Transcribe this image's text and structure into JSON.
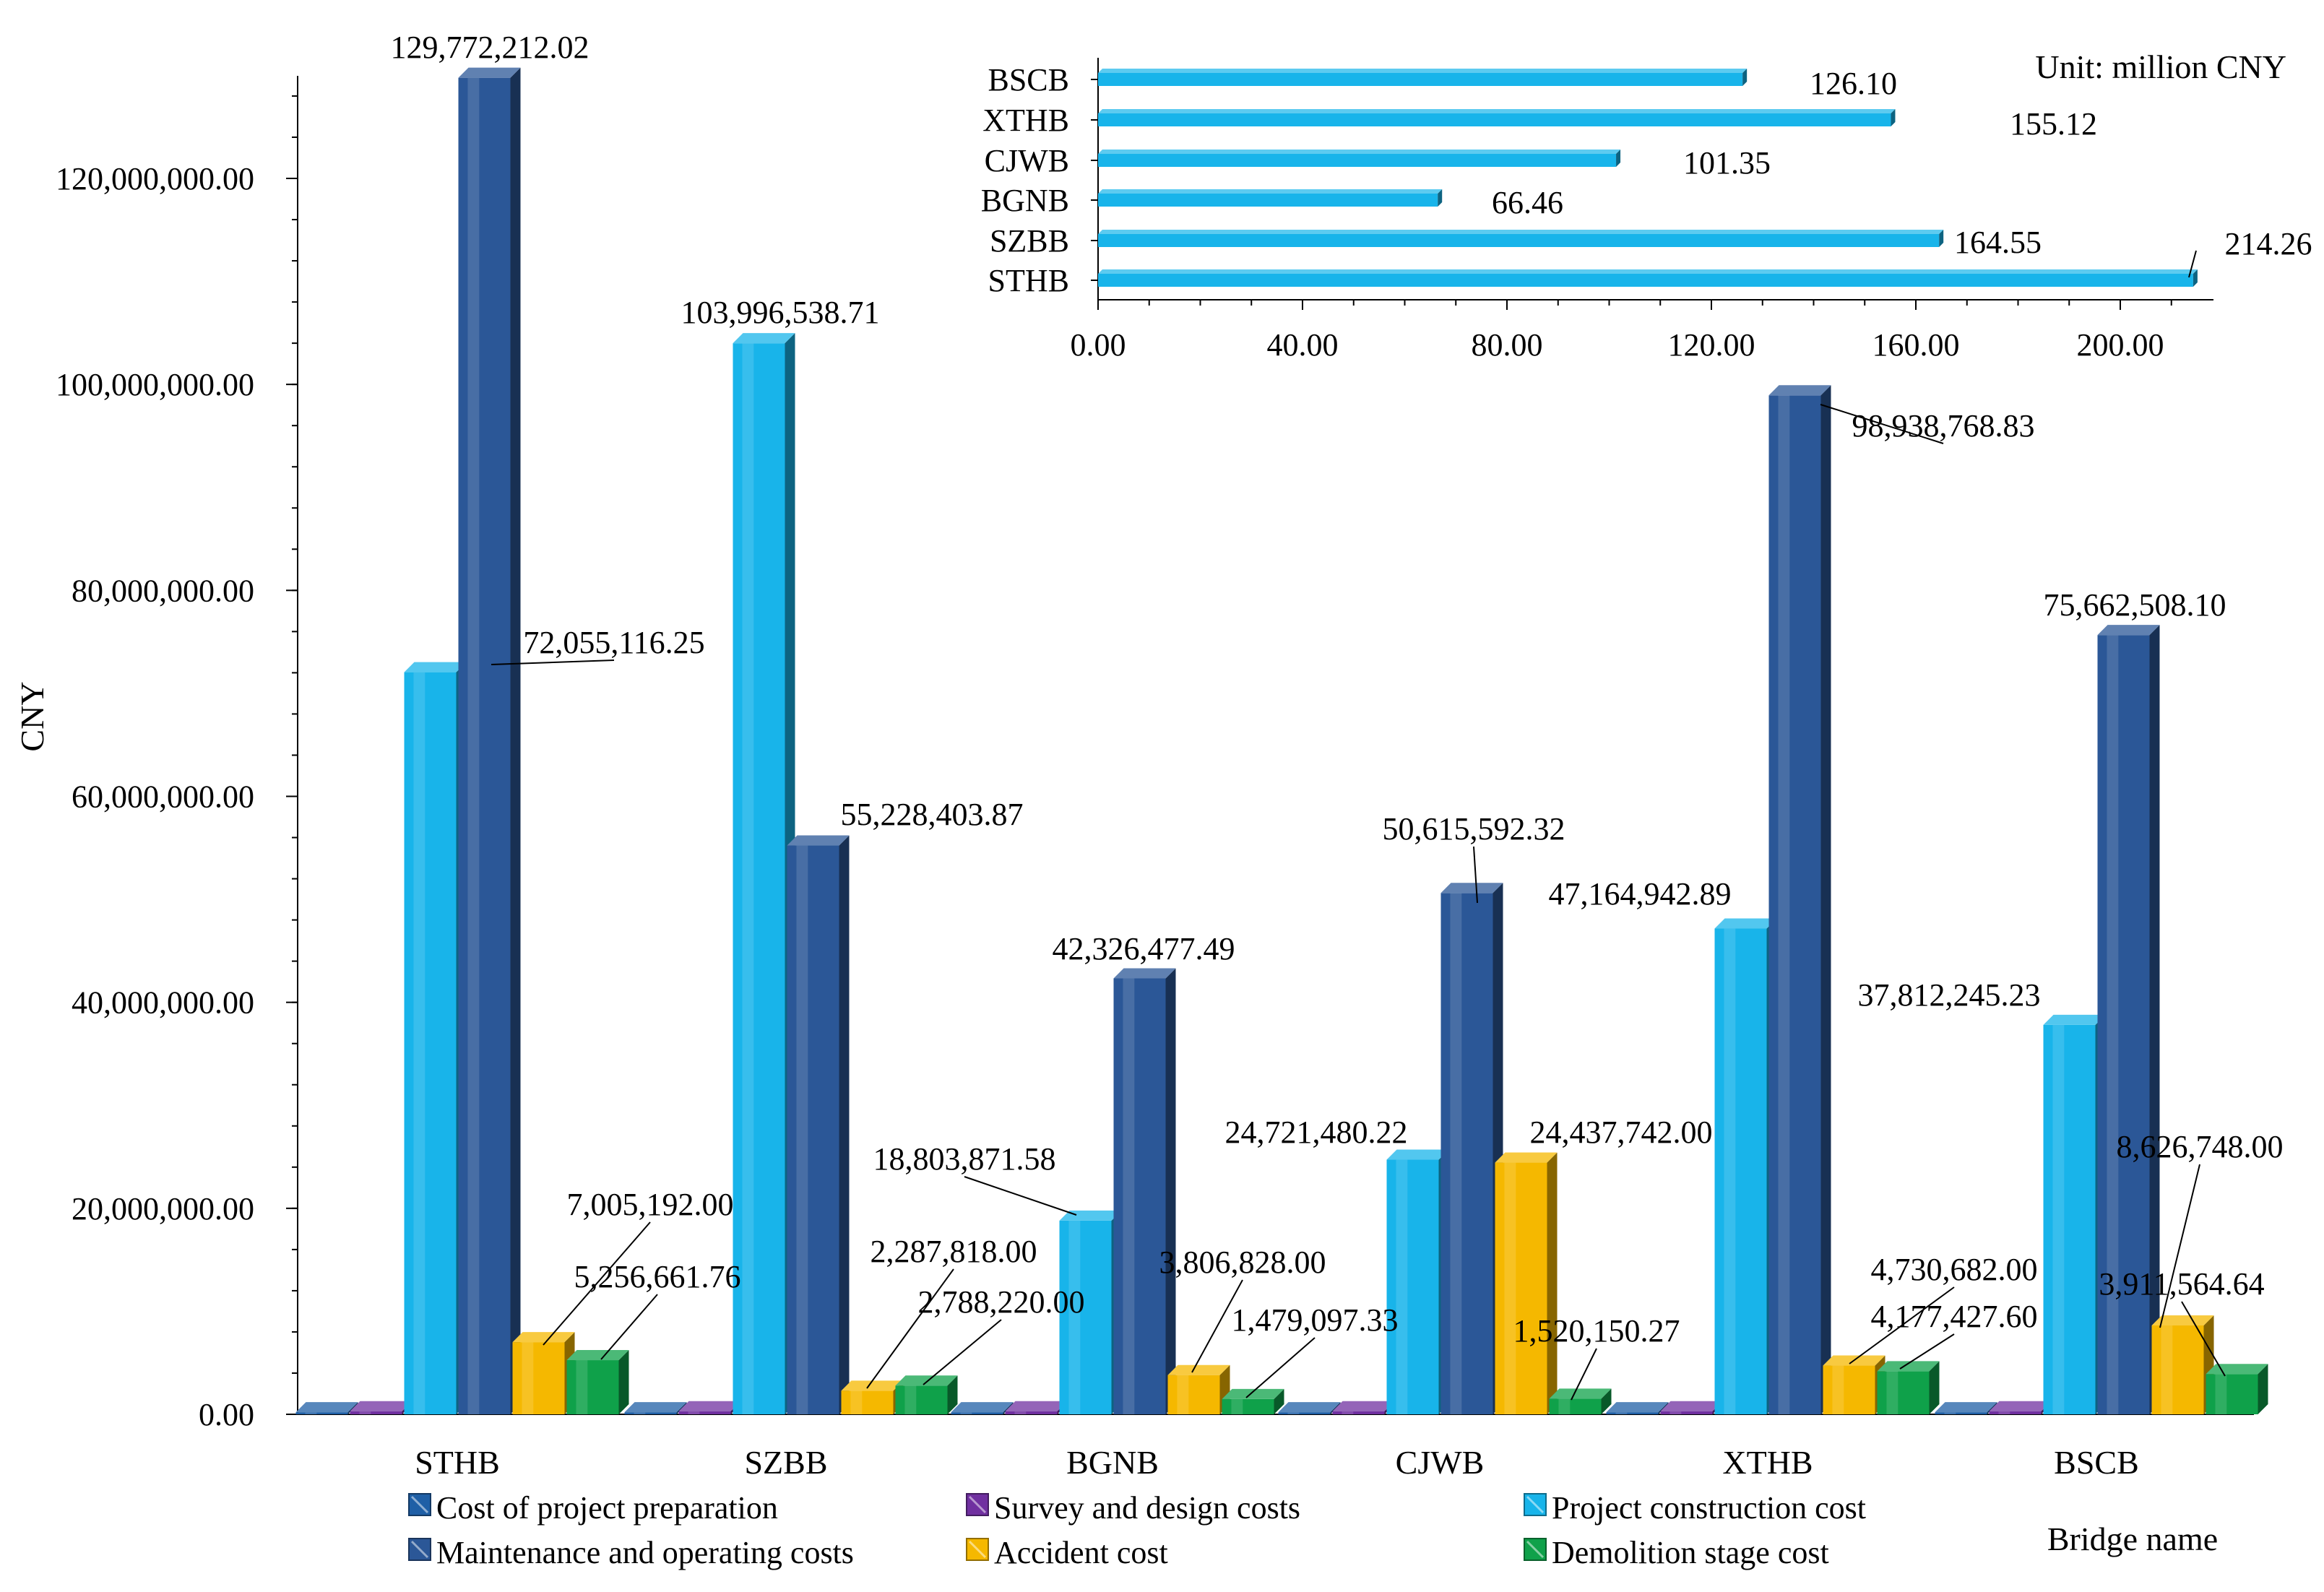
{
  "chart_data": [
    {
      "type": "bar",
      "title": "",
      "xlabel": "Bridge name",
      "ylabel": "CNY",
      "ylim": [
        0,
        130000000
      ],
      "yticks": [
        "0.00",
        "20,000,000.00",
        "40,000,000.00",
        "60,000,000.00",
        "80,000,000.00",
        "100,000,000.00",
        "120,000,000.00"
      ],
      "ytick_values": [
        0,
        20000000,
        40000000,
        60000000,
        80000000,
        100000000,
        120000000
      ],
      "categories": [
        "STHB",
        "SZBB",
        "BGNB",
        "CJWB",
        "XTHB",
        "BSCB"
      ],
      "legend_position": "bottom",
      "series": [
        {
          "name": "Cost of project preparation",
          "color": "#1f5fa6",
          "values": [
            200000,
            200000,
            200000,
            200000,
            200000,
            200000
          ],
          "labels": [
            "",
            "",
            "",
            "",
            "",
            ""
          ]
        },
        {
          "name": "Survey and design costs",
          "color": "#7030a0",
          "values": [
            300000,
            300000,
            300000,
            300000,
            300000,
            300000
          ],
          "labels": [
            "",
            "",
            "",
            "",
            "",
            ""
          ]
        },
        {
          "name": "Project construction cost",
          "color": "#18b4ea",
          "values": [
            72055116.25,
            103996538.71,
            18803871.58,
            24721480.22,
            47164942.89,
            37812245.23
          ],
          "labels": [
            "72,055,116.25",
            "103,996,538.71",
            "18,803,871.58",
            "24,721,480.22",
            "47,164,942.89",
            "37,812,245.23"
          ]
        },
        {
          "name": "Maintenance and operating costs",
          "color": "#2b5797",
          "values": [
            129772212.02,
            55228403.87,
            42326477.49,
            50615592.32,
            98938768.83,
            75662508.1
          ],
          "labels": [
            "129,772,212.02",
            "55,228,403.87",
            "42,326,477.49",
            "50,615,592.32",
            "98,938,768.83",
            "75,662,508.10"
          ]
        },
        {
          "name": "Accident cost",
          "color": "#f5b800",
          "values": [
            7005192.0,
            2287818.0,
            3806828.0,
            24437742.0,
            4730682.0,
            8626748.0
          ],
          "labels": [
            "7,005,192.00",
            "2,287,818.00",
            "3,806,828.00",
            "24,437,742.00",
            "4,730,682.00",
            "8,626,748.00"
          ]
        },
        {
          "name": "Demolition stage cost",
          "color": "#0fa14a",
          "values": [
            5256661.76,
            2788220.0,
            1479097.33,
            1520150.27,
            4177427.6,
            3911564.64
          ],
          "labels": [
            "5,256,661.76",
            "2,788,220.00",
            "1,479,097.33",
            "1,520,150.27",
            "4,177,427.60",
            "3,911,564.64"
          ]
        }
      ]
    },
    {
      "type": "bar",
      "orientation": "horizontal",
      "title": "",
      "unit_label": "Unit: million CNY",
      "xlim": [
        0,
        220
      ],
      "xticks": [
        "0.00",
        "40.00",
        "80.00",
        "120.00",
        "160.00",
        "200.00"
      ],
      "xtick_values": [
        0,
        40,
        80,
        120,
        160,
        200
      ],
      "categories": [
        "STHB",
        "SZBB",
        "BGNB",
        "CJWB",
        "XTHB",
        "BSCB"
      ],
      "values": [
        214.26,
        164.55,
        66.46,
        101.35,
        155.12,
        126.1
      ],
      "labels": [
        "214.26",
        "164.55",
        "66.46",
        "101.35",
        "155.12",
        "126.10"
      ],
      "color": "#18b4ea"
    }
  ]
}
